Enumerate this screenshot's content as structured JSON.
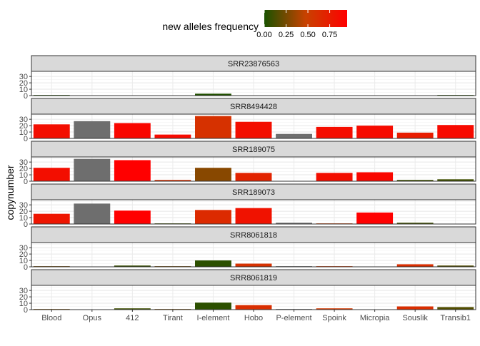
{
  "chart_data": {
    "type": "bar",
    "ylabel": "copynumber",
    "xlabel": "",
    "ylim": [
      0,
      38
    ],
    "yticks": [
      0,
      10,
      20,
      30
    ],
    "grid": true,
    "legend": {
      "title": "new alleles frequency",
      "position": "top",
      "ticks": [
        "0.00",
        "0.25",
        "0.50",
        "0.75"
      ],
      "tick_values": [
        0,
        0.25,
        0.5,
        0.75
      ],
      "range": [
        0,
        0.95
      ],
      "gradient": [
        "#1a5200",
        "#c84200",
        "#ff0000"
      ]
    },
    "categories": [
      "Blood",
      "Opus",
      "412",
      "Tirant",
      "I-element",
      "Hobo",
      "P-element",
      "Spoink",
      "Micropia",
      "Souslik",
      "Transib1"
    ],
    "na_color": "#6e6e6e",
    "panels": [
      {
        "name": "SRR23876563",
        "values": [
          1,
          0,
          0.3,
          0,
          3,
          0,
          0,
          0,
          0,
          0.3,
          1
        ],
        "frequency": [
          0.02,
          null,
          0.1,
          null,
          0.02,
          null,
          null,
          null,
          null,
          0.1,
          0.03
        ]
      },
      {
        "name": "SRR8494428",
        "values": [
          22,
          27,
          24,
          6,
          35,
          26,
          7,
          18,
          20,
          9,
          21
        ],
        "frequency": [
          0.85,
          null,
          0.9,
          0.88,
          0.6,
          0.85,
          null,
          0.86,
          0.87,
          0.75,
          0.88
        ]
      },
      {
        "name": "SRR189075",
        "values": [
          21,
          35,
          33,
          2,
          21,
          13,
          0.5,
          13,
          14,
          2,
          3
        ],
        "frequency": [
          0.85,
          null,
          0.98,
          0.6,
          0.3,
          0.7,
          0.1,
          0.85,
          0.9,
          0.1,
          0.1
        ]
      },
      {
        "name": "SRR189073",
        "values": [
          16,
          32,
          21,
          1,
          22,
          25,
          2,
          1,
          18,
          2,
          0.5
        ],
        "frequency": [
          0.8,
          null,
          0.95,
          0.1,
          0.65,
          0.82,
          null,
          0.5,
          0.95,
          0.1,
          0.1
        ]
      },
      {
        "name": "SRR8061818",
        "values": [
          1,
          0.5,
          2,
          1,
          10,
          5,
          1,
          1,
          0,
          4,
          2
        ],
        "frequency": [
          0.25,
          null,
          0.08,
          0.25,
          0.05,
          0.6,
          null,
          0.55,
          null,
          0.62,
          0.15
        ]
      },
      {
        "name": "SRR8061819",
        "values": [
          1,
          0.5,
          2,
          1,
          11,
          7,
          1,
          2,
          0,
          5,
          4
        ],
        "frequency": [
          0.25,
          null,
          0.1,
          0.25,
          0.05,
          0.62,
          null,
          0.55,
          null,
          0.62,
          0.15
        ]
      }
    ]
  }
}
